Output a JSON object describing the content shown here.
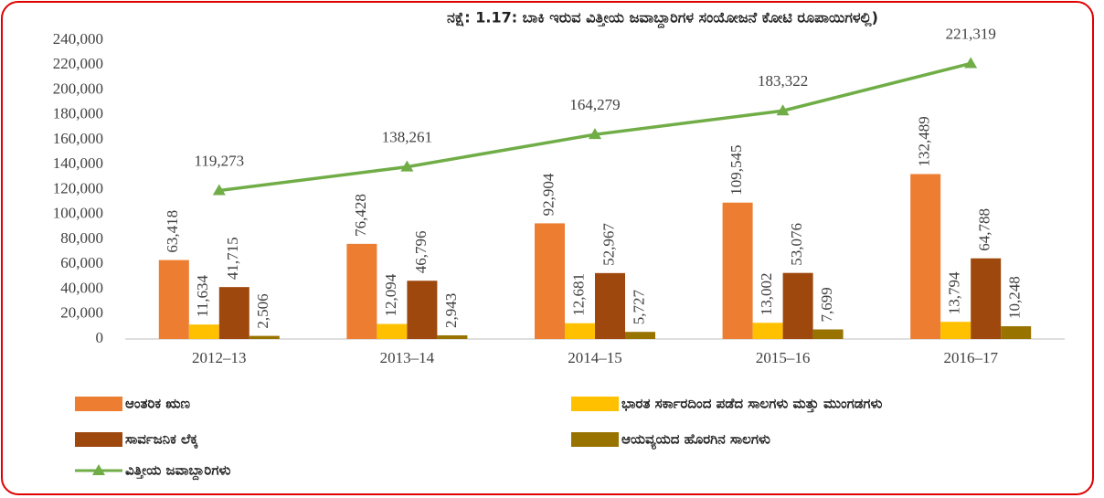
{
  "chart_data": {
    "type": "bar",
    "title": "ನಕ್ಷೆ: 1.17: ಬಾಕಿ ಇರುವ ವಿತ್ತೀಯ ಜವಾಬ್ದಾರಿಗಳ ಸಂಯೋಜನೆ ಕೋಟಿ ರೂಪಾಯಿಗಳಲ್ಲಿ)",
    "categories": [
      "2012–13",
      "2013–14",
      "2014–15",
      "2015–16",
      "2016–17"
    ],
    "series": [
      {
        "name": "ಆಂತರಿಕ ಋಣ",
        "color": "#ED7D31",
        "values": [
          63418,
          76428,
          92904,
          109545,
          132489
        ],
        "value_labels": [
          "63,418",
          "76,428",
          "92,904",
          "109,545",
          "132,489"
        ]
      },
      {
        "name": "ಭಾರತ ಸರ್ಕಾರದಿಂದ ಪಡೆದ ಸಾಲಗಳು ಮತ್ತು ಮುಂಗಡಗಳು",
        "color": "#FFC000",
        "values": [
          11634,
          12094,
          12681,
          13002,
          13794
        ],
        "value_labels": [
          "11,634",
          "12,094",
          "12,681",
          "13,002",
          "13,794"
        ]
      },
      {
        "name": "ಸಾರ್ವಜನಿಕ ಲೆಕ್ಕ",
        "color": "#9E480E",
        "values": [
          41715,
          46796,
          52967,
          53076,
          64788
        ],
        "value_labels": [
          "41,715",
          "46,796",
          "52,967",
          "53,076",
          "64,788"
        ]
      },
      {
        "name": "ಆಯವ್ಯಯದ ಹೊರಗಿನ ಸಾಲಗಳು",
        "color": "#997300",
        "values": [
          2506,
          2943,
          5727,
          7699,
          10248
        ],
        "value_labels": [
          "2,506",
          "2,943",
          "5,727",
          "7,699",
          "10,248"
        ]
      },
      {
        "name": "ವಿತ್ತೀಯ ಜವಾಬ್ದಾರಿಗಳು",
        "color": "#70AD47",
        "type": "line",
        "values": [
          119273,
          138261,
          164279,
          183322,
          221319
        ],
        "value_labels": [
          "119,273",
          "138,261",
          "164,279",
          "183,322",
          "221,319"
        ]
      }
    ],
    "ylim": [
      0,
      240000
    ],
    "yticks": [
      0,
      {
        "value": 20000,
        "label": "20,000"
      },
      {
        "value": 40000,
        "label": "40,000"
      },
      {
        "value": 60000,
        "label": "60,000"
      },
      {
        "value": 80000,
        "label": "80,000"
      },
      {
        "value": 100000,
        "label": "100,000"
      },
      {
        "value": 120000,
        "label": "120,000"
      },
      {
        "value": 140000,
        "label": "140,000"
      },
      {
        "value": 160000,
        "label": "160,000"
      },
      {
        "value": 180000,
        "label": "180,000"
      },
      {
        "value": 200000,
        "label": "200,000"
      },
      {
        "value": 220000,
        "label": "220,000"
      },
      {
        "value": 240000,
        "label": "240,000"
      }
    ],
    "grid": false
  }
}
